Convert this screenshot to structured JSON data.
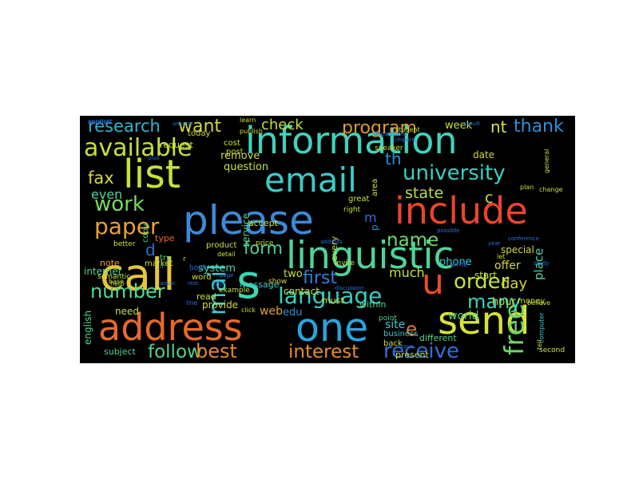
{
  "word_cloud": {
    "words": [
      {
        "text": "information",
        "color": "#3fd3bd"
      },
      {
        "text": "please",
        "color": "#3c89d9"
      },
      {
        "text": "linguistic",
        "color": "#4fd49a"
      },
      {
        "text": "address",
        "color": "#e66a29"
      },
      {
        "text": "include",
        "color": "#e8462a"
      },
      {
        "text": "one",
        "color": "#2ba3de"
      },
      {
        "text": "send",
        "color": "#d5e23a"
      },
      {
        "text": "email",
        "color": "#3ec9c9"
      },
      {
        "text": "list",
        "color": "#c8e03a"
      },
      {
        "text": "call",
        "color": "#e6c53a"
      },
      {
        "text": "s",
        "color": "#37d9b0"
      },
      {
        "text": "u",
        "color": "#e84d27"
      },
      {
        "text": "available",
        "color": "#c6e03b"
      },
      {
        "text": "university",
        "color": "#39d0c1"
      },
      {
        "text": "language",
        "color": "#38cfc0"
      },
      {
        "text": "work",
        "color": "#7bd960"
      },
      {
        "text": "paper",
        "color": "#e6a338"
      },
      {
        "text": "number",
        "color": "#4fd99a"
      },
      {
        "text": "free",
        "color": "#6bd767"
      },
      {
        "text": "receive",
        "color": "#2f6fd9"
      },
      {
        "text": "follow",
        "color": "#56d388"
      },
      {
        "text": "best",
        "color": "#e38530"
      },
      {
        "text": "interest",
        "color": "#e28f2f"
      },
      {
        "text": "order",
        "color": "#c7e03b"
      },
      {
        "text": "many",
        "color": "#3dd2b6"
      },
      {
        "text": "name",
        "color": "#6ed96a"
      },
      {
        "text": "program",
        "color": "#d89c34"
      },
      {
        "text": "want",
        "color": "#d2d83e"
      },
      {
        "text": "research",
        "color": "#30b6d4"
      },
      {
        "text": "thank",
        "color": "#2c8fd9"
      },
      {
        "text": "mail",
        "color": "#3ec9c9"
      },
      {
        "text": "first",
        "color": "#2c7fd9"
      },
      {
        "text": "e",
        "color": "#e67a2c"
      },
      {
        "text": "fax",
        "color": "#d2d83e"
      },
      {
        "text": "form",
        "color": "#4dd2a0"
      },
      {
        "text": "state",
        "color": "#b9de45"
      },
      {
        "text": "check",
        "color": "#c4df3d"
      },
      {
        "text": "nt",
        "color": "#d5e23a"
      },
      {
        "text": "day",
        "color": "#d2d83e"
      },
      {
        "text": "d",
        "color": "#2f6fd9"
      },
      {
        "text": "even",
        "color": "#4dd2a0"
      },
      {
        "text": "web",
        "color": "#e6a338"
      },
      {
        "text": "edu",
        "color": "#2c8fd9"
      },
      {
        "text": "site",
        "color": "#3ec9c9"
      },
      {
        "text": "much",
        "color": "#c6e03b"
      },
      {
        "text": "world",
        "color": "#56d388"
      },
      {
        "text": "phone",
        "color": "#3ec9c9"
      },
      {
        "text": "offer",
        "color": "#d2d83e"
      },
      {
        "text": "place",
        "color": "#4dd2a0"
      },
      {
        "text": "hour",
        "color": "#c6e03b"
      },
      {
        "text": "system",
        "color": "#4dd2a0"
      },
      {
        "text": "internet",
        "color": "#56d388"
      },
      {
        "text": "need",
        "color": "#c6e03b"
      },
      {
        "text": "provide",
        "color": "#d2d83e"
      },
      {
        "text": "english",
        "color": "#56d388"
      },
      {
        "text": "subject",
        "color": "#56d388"
      },
      {
        "text": "message",
        "color": "#3ec9c9"
      },
      {
        "text": "read",
        "color": "#c6e03b"
      },
      {
        "text": "two",
        "color": "#c6e03b"
      },
      {
        "text": "question",
        "color": "#c6e03b"
      },
      {
        "text": "remove",
        "color": "#d2d83e"
      },
      {
        "text": "contact",
        "color": "#c6e03b"
      },
      {
        "text": "service",
        "color": "#56d388"
      },
      {
        "text": "accept",
        "color": "#c6e03b"
      },
      {
        "text": "week",
        "color": "#c6e03b"
      },
      {
        "text": "date",
        "color": "#d2d83e"
      },
      {
        "text": "start",
        "color": "#c6e03b"
      },
      {
        "text": "special",
        "color": "#d2d83e"
      },
      {
        "text": "today",
        "color": "#d2d83e"
      },
      {
        "text": "copy",
        "color": "#56d388"
      },
      {
        "text": "cost",
        "color": "#c6e03b"
      },
      {
        "text": "post",
        "color": "#c6e03b"
      },
      {
        "text": "request",
        "color": "#c6e03b"
      },
      {
        "text": "note",
        "color": "#e6a338"
      },
      {
        "text": "type",
        "color": "#e66a29"
      },
      {
        "text": "market",
        "color": "#c6e03b"
      },
      {
        "text": "try",
        "color": "#56d388"
      },
      {
        "text": "word",
        "color": "#c6e03b"
      },
      {
        "text": "product",
        "color": "#c6e03b"
      },
      {
        "text": "business",
        "color": "#3ec9c9"
      },
      {
        "text": "back",
        "color": "#c6e03b"
      },
      {
        "text": "point",
        "color": "#56d388"
      },
      {
        "text": "different",
        "color": "#56d388"
      },
      {
        "text": "present",
        "color": "#c6e03b"
      },
      {
        "text": "must",
        "color": "#c6e03b"
      },
      {
        "text": "within",
        "color": "#56d388"
      },
      {
        "text": "example",
        "color": "#c6e03b"
      },
      {
        "text": "show",
        "color": "#d2d83e"
      },
      {
        "text": "price",
        "color": "#c6e03b"
      },
      {
        "text": "every",
        "color": "#c6e03b"
      },
      {
        "text": "invite",
        "color": "#c6e03b"
      },
      {
        "text": "money",
        "color": "#c6e03b"
      },
      {
        "text": "computer",
        "color": "#3ec9c9"
      },
      {
        "text": "second",
        "color": "#c6e03b"
      },
      {
        "text": "semantic",
        "color": "#c6e03b"
      },
      {
        "text": "great",
        "color": "#c6e03b"
      },
      {
        "text": "right",
        "color": "#c6e03b"
      },
      {
        "text": "area",
        "color": "#c6e03b"
      },
      {
        "text": "better",
        "color": "#c6e03b"
      },
      {
        "text": "learn",
        "color": "#c6e03b"
      },
      {
        "text": "publish",
        "color": "#c6e03b"
      },
      {
        "text": "student",
        "color": "#c6e03b"
      },
      {
        "text": "change",
        "color": "#c6e03b"
      },
      {
        "text": "help",
        "color": "#c6e03b"
      },
      {
        "text": "base",
        "color": "#c6e03b"
      },
      {
        "text": "detail",
        "color": "#c6e03b"
      },
      {
        "text": "click",
        "color": "#c6e03b"
      },
      {
        "text": "let",
        "color": "#c6e03b"
      },
      {
        "text": "tell",
        "color": "#c6e03b"
      },
      {
        "text": "believe",
        "color": "#c6e03b"
      },
      {
        "text": "plan",
        "color": "#c6e03b"
      },
      {
        "text": "general",
        "color": "#c6e03b"
      },
      {
        "text": "speaker",
        "color": "#c6e03b"
      },
      {
        "text": "th",
        "color": "#2c8fd9"
      },
      {
        "text": "m",
        "color": "#2f6fd9"
      },
      {
        "text": "c",
        "color": "#c6e03b"
      },
      {
        "text": "p",
        "color": "#2c8fd9"
      },
      {
        "text": "r",
        "color": "#d2d83e"
      },
      {
        "text": "book",
        "color": "#2c6fd9"
      },
      {
        "text": "line",
        "color": "#2c6fd9"
      },
      {
        "text": "il",
        "color": "#2c6fd9"
      },
      {
        "text": "full",
        "color": "#2c6fd9"
      },
      {
        "text": "write",
        "color": "#2c6fd9"
      },
      {
        "text": "result",
        "color": "#2c6fd9"
      },
      {
        "text": "conference",
        "color": "#2c6fd9"
      },
      {
        "text": "possible",
        "color": "#2c6fd9"
      },
      {
        "text": "department",
        "color": "#2c6fd9"
      },
      {
        "text": "require",
        "color": "#2c6fd9"
      },
      {
        "text": "issue",
        "color": "#2c6fd9"
      },
      {
        "text": "address",
        "color": "#2c6fd9"
      },
      {
        "text": "discussion",
        "color": "#2c6fd9"
      },
      {
        "text": "plus",
        "color": "#2c6fd9"
      },
      {
        "text": "anyone",
        "color": "#2c6fd9"
      },
      {
        "text": "study",
        "color": "#2c6fd9"
      },
      {
        "text": "year",
        "color": "#2c6fd9"
      },
      {
        "text": "rest",
        "color": "#2c6fd9"
      },
      {
        "text": "assoc",
        "color": "#2c6fd9"
      },
      {
        "text": "page",
        "color": "#2c6fd9"
      },
      {
        "text": "support",
        "color": "#2c6fd9"
      },
      {
        "text": "english",
        "color": "#2c6fd9"
      }
    ]
  }
}
